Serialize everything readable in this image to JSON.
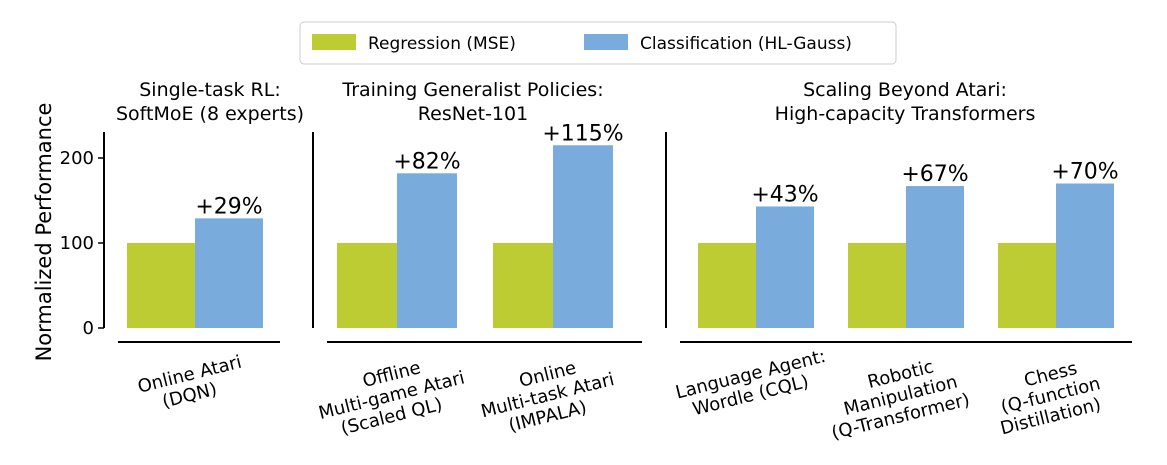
{
  "chart_data": {
    "type": "bar",
    "ylabel": "Normalized Performance",
    "yticks": [
      0,
      100,
      200
    ],
    "ylim": [
      0,
      240
    ],
    "legend": {
      "placement": "top-center",
      "entries": [
        {
          "name": "Regression (MSE)",
          "color": "#bccc32"
        },
        {
          "name": "Classification (HL-Gauss)",
          "color": "#79acdd"
        }
      ]
    },
    "series_names": [
      "Regression (MSE)",
      "Classification (HL-Gauss)"
    ],
    "series_colors": [
      "#bccc32",
      "#79acdd"
    ],
    "panels": [
      {
        "title": [
          "Single-task RL:",
          "SoftMoE (8 experts)"
        ],
        "groups": [
          {
            "label": [
              "Online Atari",
              "(DQN)"
            ],
            "values": [
              100,
              129
            ],
            "annotation": "+29%"
          }
        ]
      },
      {
        "title": [
          "Training Generalist Policies:",
          "ResNet-101"
        ],
        "groups": [
          {
            "label": [
              "Offline",
              "Multi-game Atari",
              "(Scaled QL)"
            ],
            "values": [
              100,
              182
            ],
            "annotation": "+82%"
          },
          {
            "label": [
              "Online",
              "Multi-task Atari",
              "(IMPALA)"
            ],
            "values": [
              100,
              215
            ],
            "annotation": "+115%"
          }
        ]
      },
      {
        "title": [
          "Scaling Beyond Atari:",
          "High-capacity Transformers"
        ],
        "groups": [
          {
            "label": [
              "Language Agent:",
              "Wordle (CQL)"
            ],
            "values": [
              100,
              143
            ],
            "annotation": "+43%"
          },
          {
            "label": [
              "Robotic",
              "Manipulation",
              "(Q-Transformer)"
            ],
            "values": [
              100,
              167
            ],
            "annotation": "+67%"
          },
          {
            "label": [
              "Chess",
              "(Q-function",
              "Distillation)"
            ],
            "values": [
              100,
              170
            ],
            "annotation": "+70%"
          }
        ]
      }
    ]
  }
}
